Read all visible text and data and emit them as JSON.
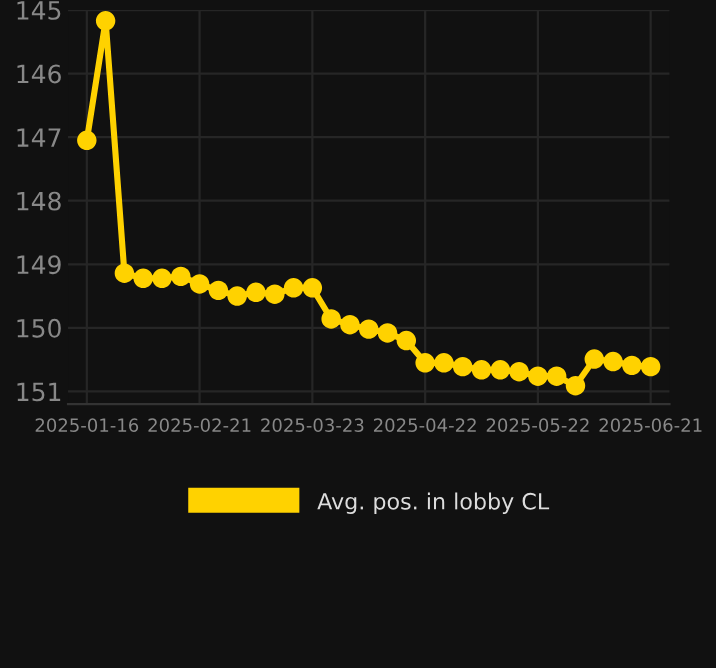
{
  "chart_data": {
    "type": "line",
    "categories": [
      "2025-01-16",
      null,
      null,
      null,
      null,
      null,
      "2025-02-21",
      null,
      null,
      null,
      null,
      null,
      "2025-03-23",
      null,
      null,
      null,
      null,
      null,
      "2025-04-22",
      null,
      null,
      null,
      null,
      null,
      "2025-05-22",
      null,
      null,
      null,
      null,
      null,
      "2025-06-21"
    ],
    "series": [
      {
        "name": "Avg. pos. in lobby CL",
        "color": "#ffd200",
        "values": [
          147.05,
          145.17,
          149.14,
          149.22,
          149.22,
          149.19,
          149.31,
          149.41,
          149.5,
          149.44,
          149.47,
          149.37,
          149.37,
          149.86,
          149.95,
          150.02,
          150.08,
          150.2,
          150.55,
          150.55,
          150.61,
          150.66,
          150.66,
          150.69,
          150.76,
          150.76,
          150.91,
          150.49,
          150.53,
          150.59,
          150.61
        ]
      }
    ],
    "ylim": [
      151.2,
      145
    ],
    "yticks": [
      145,
      146,
      147,
      148,
      149,
      150,
      151
    ],
    "grid": true,
    "legend": "bottom",
    "marker": "circle",
    "line_style": "solid"
  }
}
